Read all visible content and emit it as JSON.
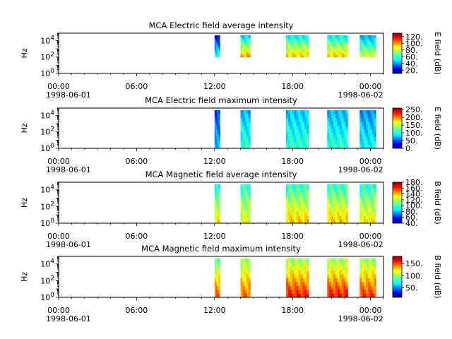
{
  "chart_data": [
    {
      "type": "heatmap",
      "title": "MCA  Electric field average intensity",
      "ylabel": "Hz",
      "yscale": "log",
      "ylim": [
        1,
        80000
      ],
      "yticks": [
        {
          "exp": "0",
          "value": 1
        },
        {
          "exp": "2",
          "value": 100
        },
        {
          "exp": "4",
          "value": 10000
        }
      ],
      "xlim": [
        "1998-06-01 00:00",
        "1998-06-02 01:00"
      ],
      "xticks": [
        "00:00",
        "06:00",
        "12:00",
        "18:00",
        "00:00"
      ],
      "xdates": [
        "1998-06-01",
        "1998-06-02"
      ],
      "colorbar": {
        "label": "E field (dB)",
        "range": [
          10,
          130
        ],
        "ticks": [
          {
            "text": "20.",
            "value": 20
          },
          {
            "text": "40.",
            "value": 40
          },
          {
            "text": "60.",
            "value": 60
          },
          {
            "text": "80.",
            "value": 80
          },
          {
            "text": "100.",
            "value": 100
          },
          {
            "text": "120.",
            "value": 120
          }
        ]
      },
      "colormap": "jet",
      "data_blocks": [
        {
          "start": "12:00",
          "end": "12:25",
          "low_hz": 100,
          "low_value": 60,
          "high_value": 25
        },
        {
          "start": "14:00",
          "end": "14:45",
          "low_hz": 100,
          "low_value": 95,
          "high_value": 50
        },
        {
          "start": "17:30",
          "end": "19:15",
          "low_hz": 100,
          "low_value": 90,
          "high_value": 55
        },
        {
          "start": "20:40",
          "end": "22:15",
          "low_hz": 100,
          "low_value": 90,
          "high_value": 55
        },
        {
          "start": "23:10",
          "end": "00:25",
          "low_hz": 100,
          "low_value": 80,
          "high_value": 45
        }
      ]
    },
    {
      "type": "heatmap",
      "title": "MCA  Electric field maximum intensity",
      "ylabel": "Hz",
      "yscale": "log",
      "ylim": [
        1,
        80000
      ],
      "yticks": [
        {
          "exp": "0",
          "value": 1
        },
        {
          "exp": "2",
          "value": 100
        },
        {
          "exp": "4",
          "value": 10000
        }
      ],
      "xlim": [
        "1998-06-01 00:00",
        "1998-06-02 01:00"
      ],
      "xticks": [
        "00:00",
        "06:00",
        "12:00",
        "18:00",
        "00:00"
      ],
      "xdates": [
        "1998-06-01",
        "1998-06-02"
      ],
      "colorbar": {
        "label": "E field (dB)",
        "range": [
          0,
          260
        ],
        "ticks": [
          {
            "text": "0.",
            "value": 0
          },
          {
            "text": "50.",
            "value": 50
          },
          {
            "text": "100.",
            "value": 100
          },
          {
            "text": "150.",
            "value": 150
          },
          {
            "text": "200.",
            "value": 200
          },
          {
            "text": "250.",
            "value": 250
          }
        ]
      },
      "colormap": "jet",
      "data_blocks": [
        {
          "start": "12:00",
          "end": "12:25",
          "low_hz": 1,
          "low_value": 80,
          "high_value": 50
        },
        {
          "start": "14:00",
          "end": "14:45",
          "low_hz": 1,
          "low_value": 110,
          "high_value": 80
        },
        {
          "start": "17:30",
          "end": "19:15",
          "low_hz": 1,
          "low_value": 110,
          "high_value": 85
        },
        {
          "start": "20:40",
          "end": "22:15",
          "low_hz": 1,
          "low_value": 110,
          "high_value": 80
        },
        {
          "start": "23:10",
          "end": "00:25",
          "low_hz": 1,
          "low_value": 100,
          "high_value": 70
        }
      ]
    },
    {
      "type": "heatmap",
      "title": "MCA  Magnetic field average intensity",
      "ylabel": "Hz",
      "yscale": "log",
      "ylim": [
        1,
        80000
      ],
      "yticks": [
        {
          "exp": "0",
          "value": 1
        },
        {
          "exp": "2",
          "value": 100
        },
        {
          "exp": "4",
          "value": 10000
        }
      ],
      "xlim": [
        "1998-06-01 00:00",
        "1998-06-02 01:00"
      ],
      "xticks": [
        "00:00",
        "06:00",
        "12:00",
        "18:00",
        "00:00"
      ],
      "xdates": [
        "1998-06-01",
        "1998-06-02"
      ],
      "colorbar": {
        "label": "B field (dB)",
        "range": [
          40,
          180
        ],
        "ticks": [
          {
            "text": "40.",
            "value": 40
          },
          {
            "text": "60.",
            "value": 60
          },
          {
            "text": "80.",
            "value": 80
          },
          {
            "text": "100.",
            "value": 100
          },
          {
            "text": "120.",
            "value": 120
          },
          {
            "text": "140.",
            "value": 140
          },
          {
            "text": "160.",
            "value": 160
          },
          {
            "text": "180.",
            "value": 180
          }
        ]
      },
      "colormap": "jet",
      "data_blocks": [
        {
          "start": "12:00",
          "end": "12:25",
          "low_hz": 1,
          "low_value": 130,
          "high_value": 95
        },
        {
          "start": "14:00",
          "end": "14:45",
          "low_hz": 1,
          "low_value": 125,
          "high_value": 100
        },
        {
          "start": "17:30",
          "end": "19:15",
          "low_hz": 1,
          "low_value": 135,
          "high_value": 100
        },
        {
          "start": "20:40",
          "end": "22:15",
          "low_hz": 1,
          "low_value": 135,
          "high_value": 100
        },
        {
          "start": "23:10",
          "end": "00:25",
          "low_hz": 1,
          "low_value": 130,
          "high_value": 98
        }
      ]
    },
    {
      "type": "heatmap",
      "title": "MCA  Magnetic field maximum intensity",
      "ylabel": "Hz",
      "yscale": "log",
      "ylim": [
        1,
        80000
      ],
      "yticks": [
        {
          "exp": "0",
          "value": 1
        },
        {
          "exp": "2",
          "value": 100
        },
        {
          "exp": "4",
          "value": 10000
        }
      ],
      "xlim": [
        "1998-06-01 00:00",
        "1998-06-02 01:00"
      ],
      "xticks": [
        "00:00",
        "06:00",
        "12:00",
        "18:00",
        "00:00"
      ],
      "xdates": [
        "1998-06-01",
        "1998-06-02"
      ],
      "colorbar": {
        "label": "B field (dB)",
        "range": [
          10,
          180
        ],
        "ticks": [
          {
            "text": "50.",
            "value": 50
          },
          {
            "text": "100.",
            "value": 100
          },
          {
            "text": "150.",
            "value": 150
          }
        ]
      },
      "colormap": "jet",
      "data_blocks": [
        {
          "start": "12:00",
          "end": "12:25",
          "low_hz": 1,
          "low_value": 145,
          "high_value": 90
        },
        {
          "start": "14:00",
          "end": "14:45",
          "low_hz": 1,
          "low_value": 140,
          "high_value": 100
        },
        {
          "start": "17:30",
          "end": "19:15",
          "low_hz": 1,
          "low_value": 155,
          "high_value": 100
        },
        {
          "start": "20:40",
          "end": "22:15",
          "low_hz": 1,
          "low_value": 155,
          "high_value": 100
        },
        {
          "start": "23:10",
          "end": "00:25",
          "low_hz": 1,
          "low_value": 150,
          "high_value": 100
        }
      ]
    }
  ]
}
